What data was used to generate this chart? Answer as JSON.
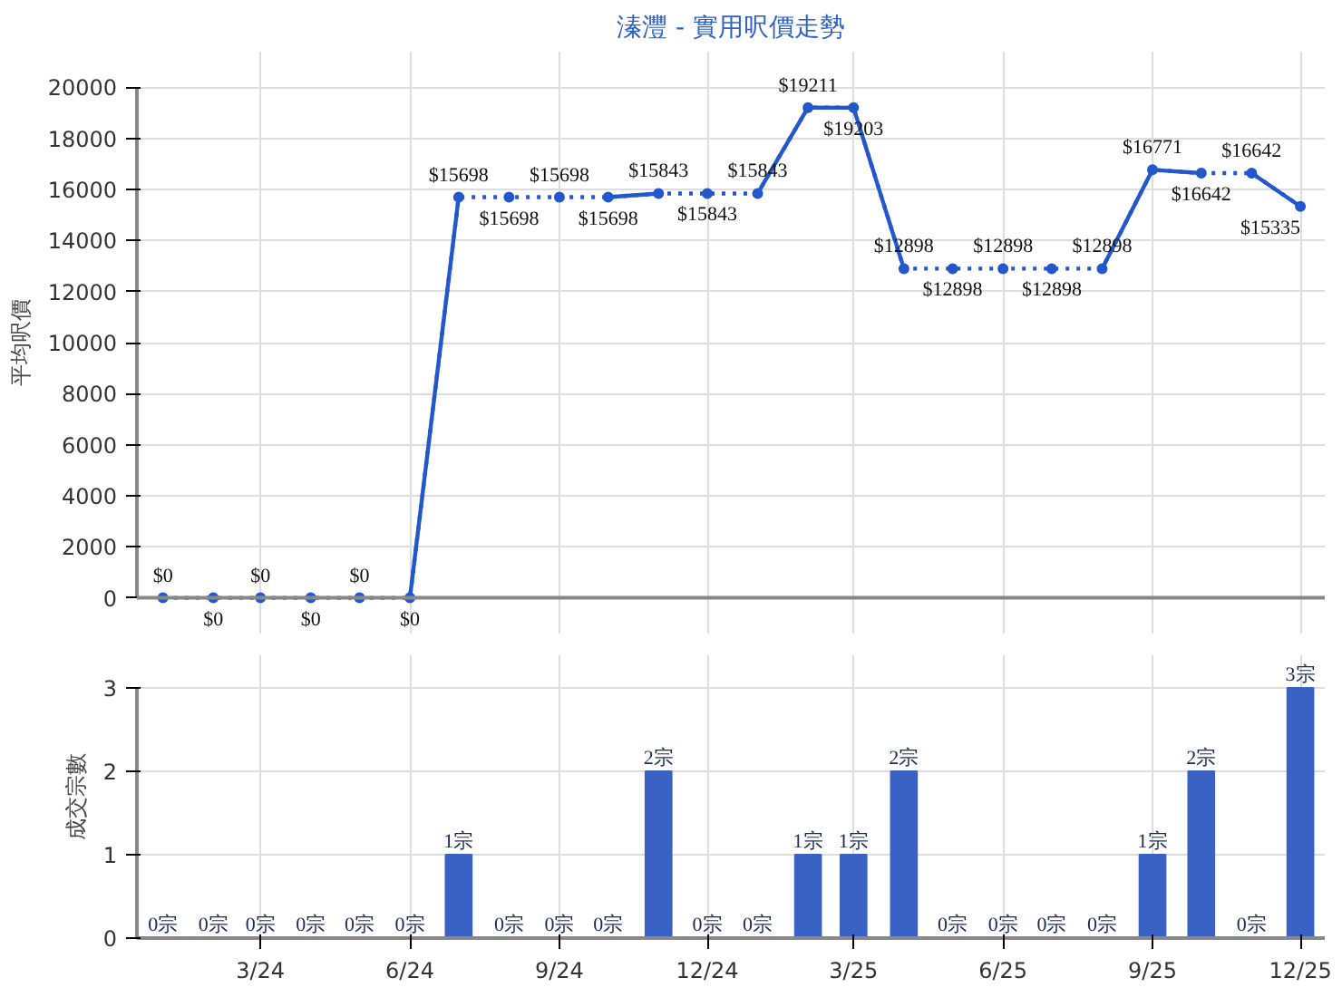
{
  "chart_data": [
    {
      "type": "line",
      "title": "溱灃 - 實用呎價走勢",
      "ylabel": "平均呎價",
      "x": [
        "2024-01",
        "2024-02",
        "2024-03",
        "2024-04",
        "2024-05",
        "2024-06",
        "2024-07",
        "2024-08",
        "2024-09",
        "2024-10",
        "2024-11",
        "2024-12",
        "2025-01",
        "2025-02",
        "2025-03",
        "2025-04",
        "2025-05",
        "2025-06",
        "2025-07",
        "2025-08",
        "2025-09",
        "2025-10",
        "2025-11",
        "2025-12"
      ],
      "series": [
        {
          "color": "#2258cc",
          "line_style": "dotted",
          "marker": "circle",
          "values": [
            0,
            0,
            0,
            0,
            0,
            0,
            15698,
            15698,
            15698,
            15698,
            15843,
            15843,
            15843,
            19211,
            19203,
            12898,
            12898,
            12898,
            12898,
            12898,
            16771,
            16642,
            16642,
            15335
          ],
          "value_labels": [
            "$0",
            "$0",
            "$0",
            "$0",
            "$0",
            "$0",
            "$15698",
            "$15698",
            "$15698",
            "$15698",
            "$15843",
            "$15843",
            "$15843",
            "$19211",
            "$19203",
            "$12898",
            "$12898",
            "$12898",
            "$12898",
            "$12898",
            "$16771",
            "$16642",
            "$16642",
            "$15335"
          ]
        },
        {
          "color": "#2258cc",
          "line_style": "solid",
          "marker": "none",
          "x": [
            "2024-06",
            "2024-07"
          ],
          "values": [
            0,
            15698
          ]
        },
        {
          "color": "#2258cc",
          "line_style": "solid",
          "marker": "none",
          "x": [
            "2024-10",
            "2024-11"
          ],
          "values": [
            15698,
            15843
          ]
        },
        {
          "color": "#2258cc",
          "line_style": "solid",
          "marker": "none",
          "x": [
            "2025-01",
            "2025-02",
            "2025-03",
            "2025-04"
          ],
          "values": [
            15843,
            19211,
            19203,
            12898
          ]
        },
        {
          "color": "#2258cc",
          "line_style": "solid",
          "marker": "none",
          "x": [
            "2025-08",
            "2025-09",
            "2025-10"
          ],
          "values": [
            12898,
            16771,
            16642
          ]
        },
        {
          "color": "#2258cc",
          "line_style": "solid",
          "marker": "none",
          "x": [
            "2025-11",
            "2025-12"
          ],
          "values": [
            16642,
            15335
          ]
        }
      ],
      "xlim": [
        "2023-12-16",
        "2025-12-16"
      ],
      "xticks": [
        {
          "value": "2024-03",
          "label": null
        },
        {
          "value": "2024-06",
          "label": null
        },
        {
          "value": "2024-09",
          "label": null
        },
        {
          "value": "2024-12",
          "label": null
        },
        {
          "value": "2025-03",
          "label": null
        },
        {
          "value": "2025-06",
          "label": null
        },
        {
          "value": "2025-09",
          "label": null
        },
        {
          "value": "2025-12",
          "label": null
        }
      ],
      "ylim": [
        0,
        20000
      ],
      "yticks": [
        0,
        2000,
        4000,
        6000,
        8000,
        10000,
        12000,
        14000,
        16000,
        18000,
        20000
      ],
      "grid": true,
      "tick_labels": "y"
    },
    {
      "type": "bar",
      "ylabel": "成交宗數",
      "x": [
        "2024-01",
        "2024-02",
        "2024-03",
        "2024-04",
        "2024-05",
        "2024-06",
        "2024-07",
        "2024-08",
        "2024-09",
        "2024-10",
        "2024-11",
        "2024-12",
        "2025-01",
        "2025-02",
        "2025-03",
        "2025-04",
        "2025-05",
        "2025-06",
        "2025-07",
        "2025-08",
        "2025-09",
        "2025-10",
        "2025-11",
        "2025-12"
      ],
      "series": [
        {
          "color": "#3a62c4",
          "values": [
            0,
            0,
            0,
            0,
            0,
            0,
            1,
            0,
            0,
            0,
            2,
            0,
            0,
            1,
            1,
            2,
            0,
            0,
            0,
            0,
            1,
            2,
            0,
            3
          ],
          "value_labels": [
            "0宗",
            "0宗",
            "0宗",
            "0宗",
            "0宗",
            "0宗",
            "1宗",
            "0宗",
            "0宗",
            "0宗",
            "2宗",
            "0宗",
            "0宗",
            "1宗",
            "1宗",
            "2宗",
            "0宗",
            "0宗",
            "0宗",
            "0宗",
            "1宗",
            "2宗",
            "0宗",
            "3宗"
          ]
        }
      ],
      "xlim": [
        "2023-12-16",
        "2025-12-16"
      ],
      "xticks": [
        {
          "value": "2024-03",
          "label": "3/24"
        },
        {
          "value": "2024-06",
          "label": "6/24"
        },
        {
          "value": "2024-09",
          "label": "9/24"
        },
        {
          "value": "2024-12",
          "label": "12/24"
        },
        {
          "value": "2025-03",
          "label": "3/25"
        },
        {
          "value": "2025-06",
          "label": "6/25"
        },
        {
          "value": "2025-09",
          "label": "9/25"
        },
        {
          "value": "2025-12",
          "label": "12/25"
        }
      ],
      "ylim": [
        0,
        3
      ],
      "yticks": [
        0,
        1,
        2,
        3
      ],
      "grid": true
    }
  ]
}
